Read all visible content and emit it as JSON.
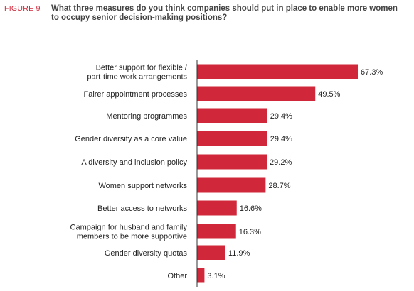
{
  "figure_label": "FIGURE 9",
  "colors": {
    "bar": "#d0283a",
    "accent": "#d0283a",
    "axis": "#333333"
  },
  "chart_data": {
    "type": "bar",
    "orientation": "horizontal",
    "title": "What three measures do you think companies should put in place to enable more women to occupy senior decision-making positions?",
    "xlabel": "",
    "ylabel": "",
    "xlim": [
      0,
      70
    ],
    "grid": false,
    "categories": [
      [
        "Better support for flexible /",
        "part-time work arrangements"
      ],
      [
        "Fairer appointment processes"
      ],
      [
        "Mentoring programmes"
      ],
      [
        "Gender diversity as a core value"
      ],
      [
        "A diversity and inclusion policy"
      ],
      [
        "Women support networks"
      ],
      [
        "Better access to networks"
      ],
      [
        "Campaign for husband and family",
        "members to be more supportive"
      ],
      [
        "Gender diversity quotas"
      ],
      [
        "Other"
      ]
    ],
    "values": [
      67.3,
      49.5,
      29.4,
      29.4,
      29.2,
      28.7,
      16.6,
      16.3,
      11.9,
      3.1
    ],
    "value_labels": [
      "67.3%",
      "49.5%",
      "29.4%",
      "29.4%",
      "29.2%",
      "28.7%",
      "16.6%",
      "16.3%",
      "11.9%",
      "3.1%"
    ]
  }
}
